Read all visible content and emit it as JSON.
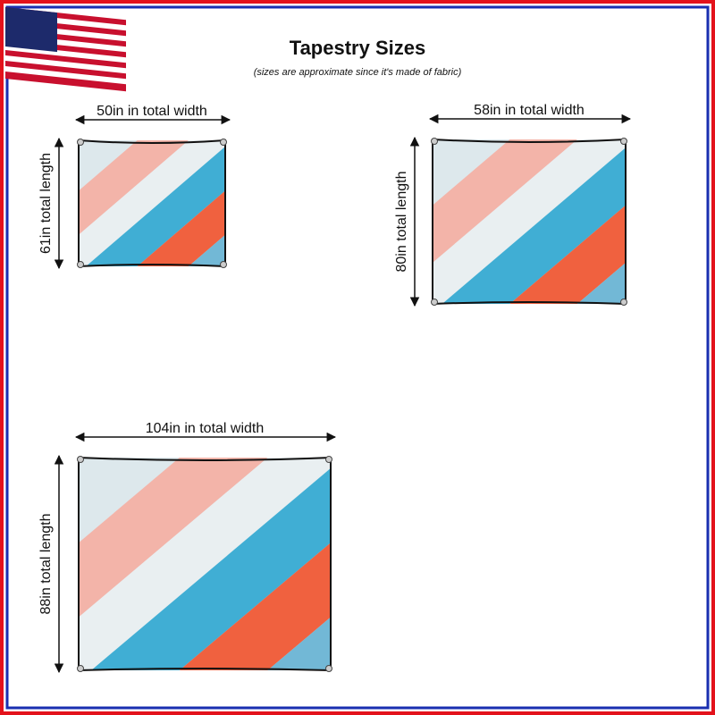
{
  "header": {
    "title": "Tapestry Sizes",
    "subtitle": "(sizes are approximate since it's made of fabric)"
  },
  "sizes": [
    {
      "width_label": "50in in total width",
      "length_label": "61in total length"
    },
    {
      "width_label": "58in in total width",
      "length_label": "80in total length"
    },
    {
      "width_label": "104in in total width",
      "length_label": "88in total length"
    }
  ]
}
